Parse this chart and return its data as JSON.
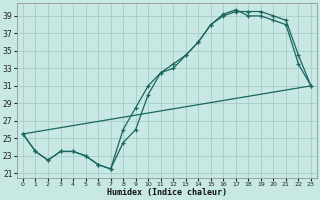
{
  "xlabel": "Humidex (Indice chaleur)",
  "bg_color": "#c8e8e4",
  "grid_color": "#a8ccc8",
  "line_color": "#1a6660",
  "xlim": [
    -0.5,
    23.5
  ],
  "ylim": [
    20.5,
    40.5
  ],
  "yticks": [
    21,
    23,
    25,
    27,
    29,
    31,
    33,
    35,
    37,
    39
  ],
  "xticks": [
    0,
    1,
    2,
    3,
    4,
    5,
    6,
    7,
    8,
    9,
    10,
    11,
    12,
    13,
    14,
    15,
    16,
    17,
    18,
    19,
    20,
    21,
    22,
    23
  ],
  "line1_x": [
    0,
    1,
    2,
    3,
    4,
    5,
    6,
    7,
    8,
    9,
    10,
    11,
    12,
    13,
    14,
    15,
    16,
    17,
    18,
    19,
    20,
    21,
    22,
    23
  ],
  "line1_y": [
    25.5,
    23.5,
    22.5,
    23.5,
    23.5,
    23.0,
    22.0,
    21.5,
    26.0,
    28.5,
    31.0,
    32.5,
    33.5,
    34.5,
    36.0,
    38.0,
    39.0,
    39.5,
    39.5,
    39.5,
    39.0,
    38.5,
    34.5,
    31.0
  ],
  "line2_x": [
    0,
    1,
    2,
    3,
    4,
    5,
    6,
    7,
    8,
    9,
    10,
    11,
    12,
    13,
    14,
    15,
    16,
    17,
    18,
    19,
    20,
    21,
    22,
    23
  ],
  "line2_y": [
    25.5,
    23.5,
    22.5,
    23.5,
    23.5,
    23.0,
    22.0,
    21.5,
    24.5,
    26.0,
    30.0,
    32.5,
    33.0,
    34.5,
    36.0,
    38.0,
    39.2,
    39.7,
    39.0,
    39.0,
    38.5,
    38.0,
    33.5,
    31.0
  ],
  "line3_x": [
    0,
    23
  ],
  "line3_y": [
    25.5,
    31.0
  ]
}
